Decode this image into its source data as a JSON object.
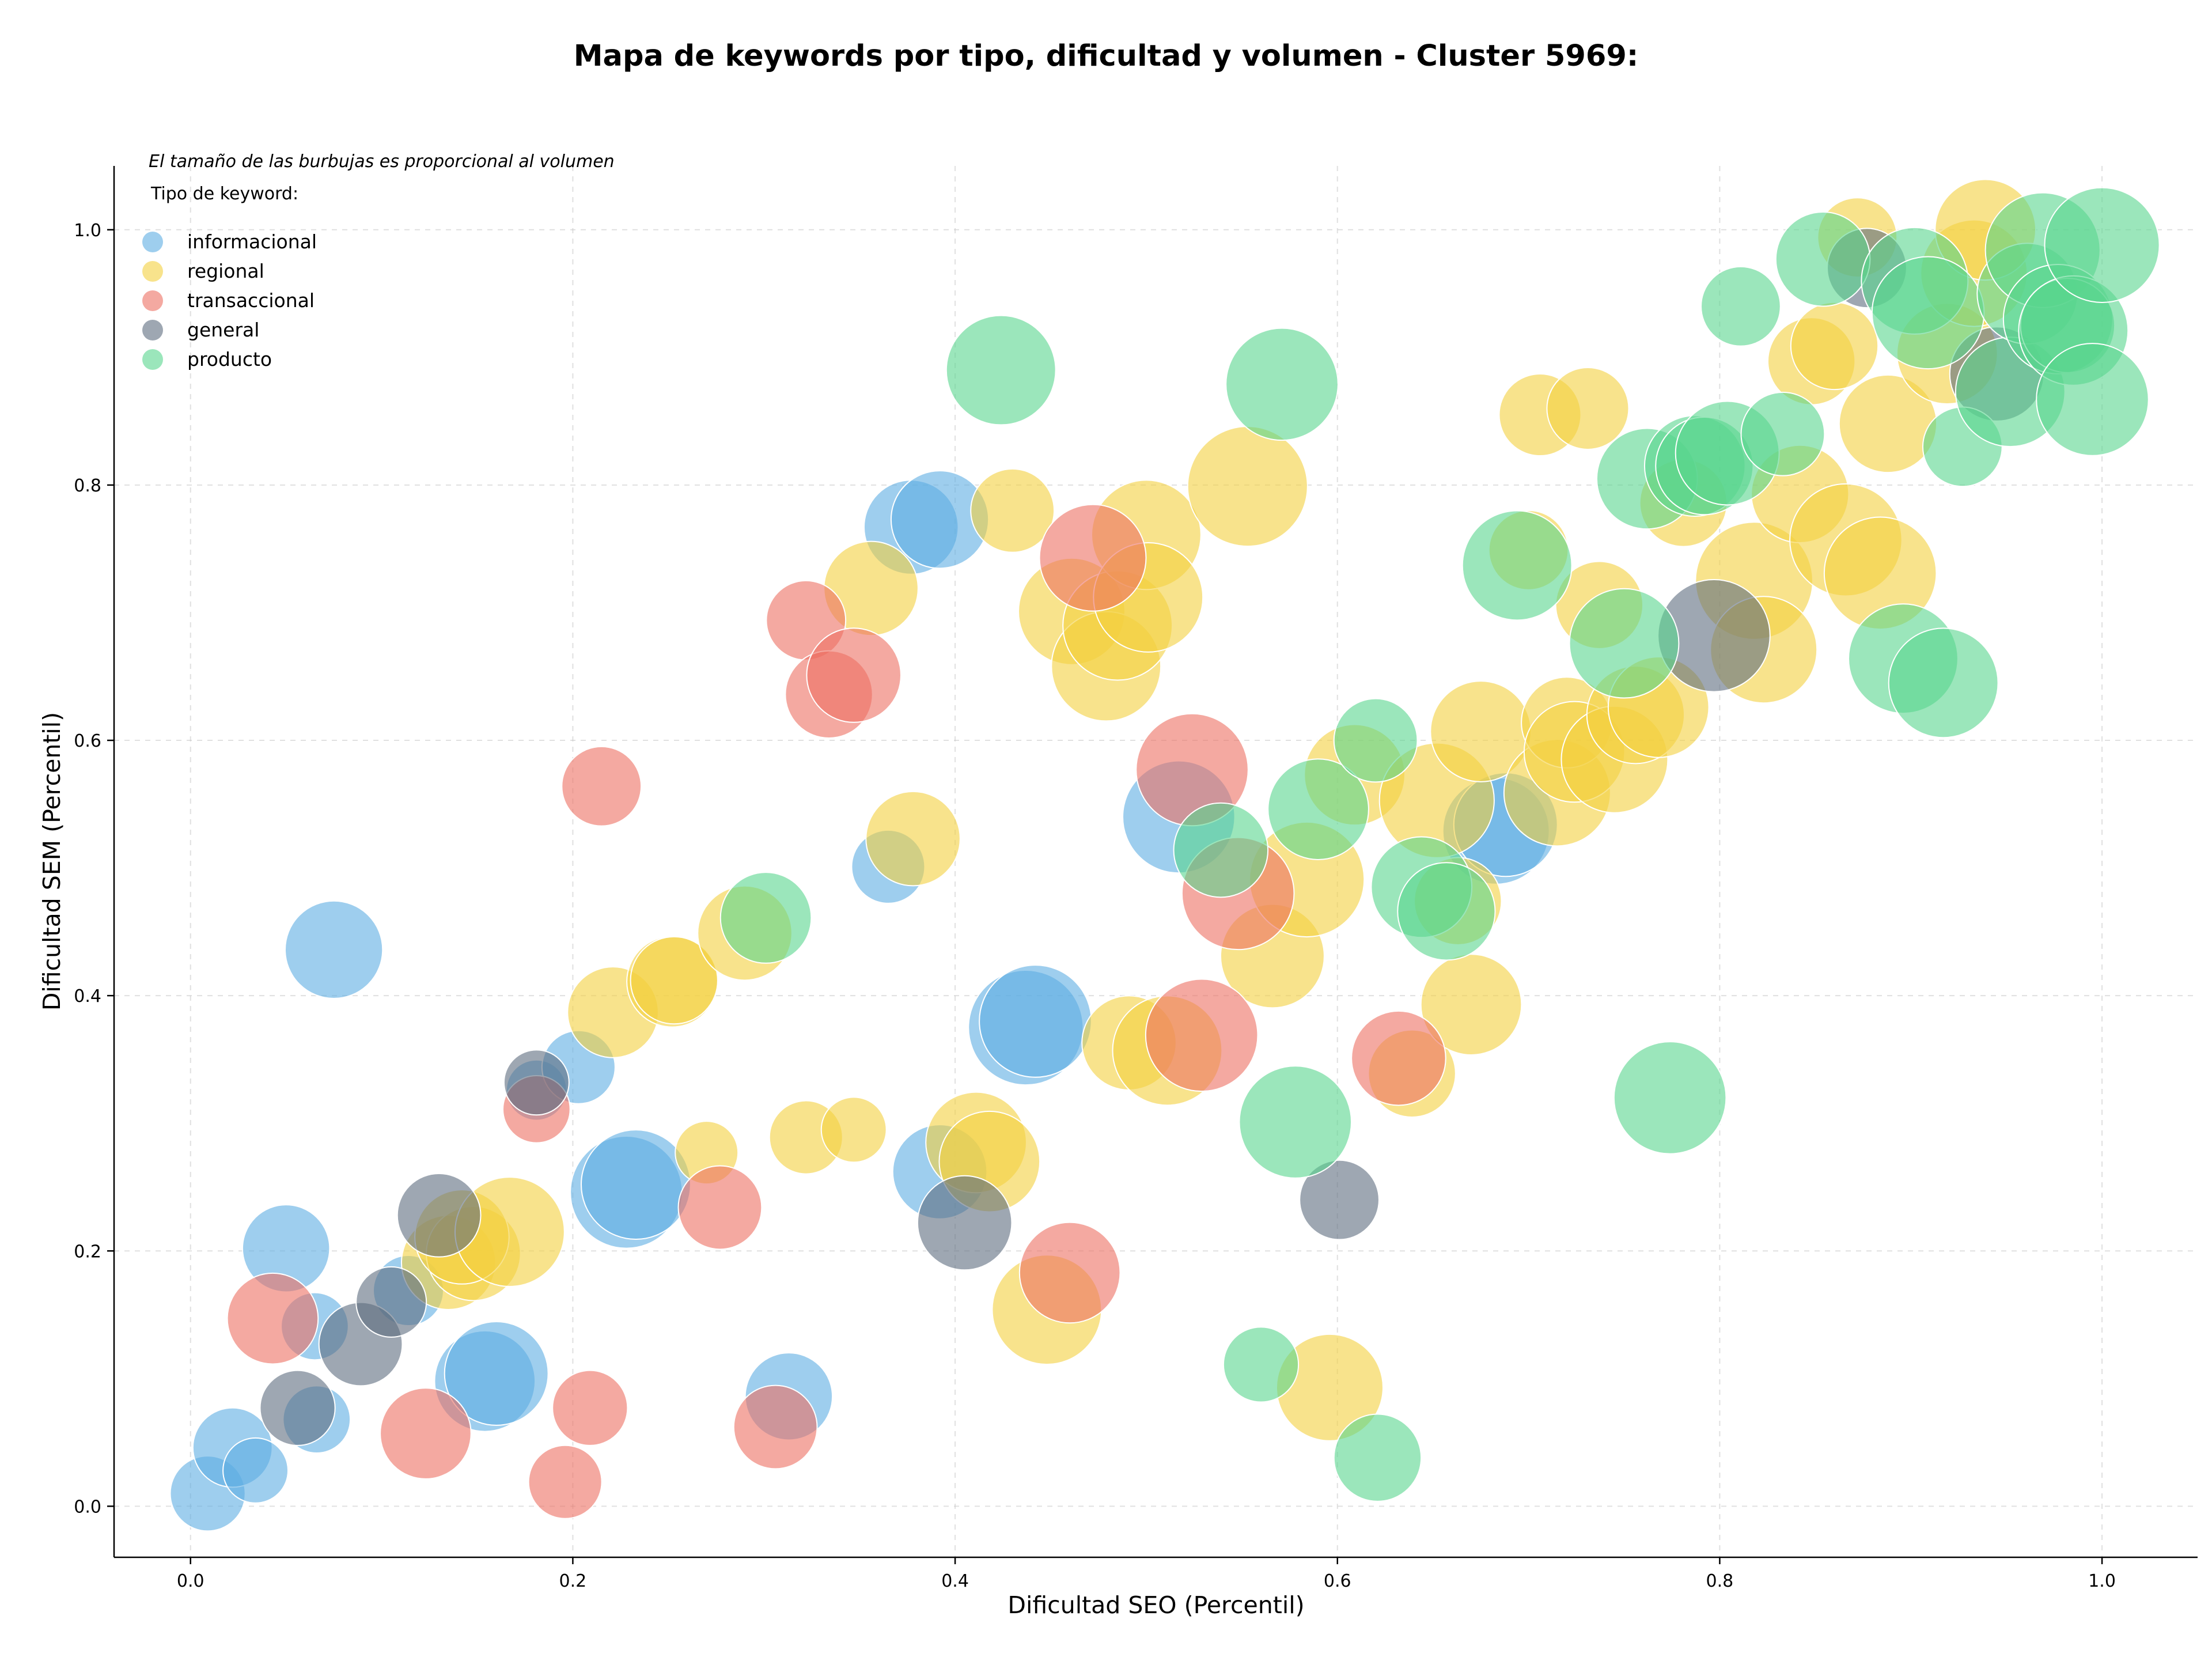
{
  "chart_data": {
    "type": "scatter",
    "title": "Mapa de keywords por tipo, dificultad y volumen - Cluster 5969:",
    "xlabel": "Dificultad SEO (Percentil)",
    "ylabel": "Dificultad SEM (Percentil)",
    "xlim": [
      -0.04,
      1.05
    ],
    "ylim": [
      -0.04,
      1.05
    ],
    "xticks": [
      "0.0",
      "0.2",
      "0.4",
      "0.6",
      "0.8",
      "1.0"
    ],
    "yticks": [
      "0.0",
      "0.2",
      "0.4",
      "0.6",
      "0.8",
      "1.0"
    ],
    "grid": true,
    "legend": {
      "placement": "top-left",
      "note": "El tamaño de las burbujas es proporcional al volumen",
      "title": "Tipo de keyword:"
    },
    "series": [
      {
        "name": "informacional",
        "color": "#5DADE2",
        "points": [
          {
            "x": 0.009,
            "y": 0.01,
            "size": 0.3
          },
          {
            "x": 0.022,
            "y": 0.046,
            "size": 0.35
          },
          {
            "x": 0.034,
            "y": 0.028,
            "size": 0.2
          },
          {
            "x": 0.05,
            "y": 0.202,
            "size": 0.45
          },
          {
            "x": 0.065,
            "y": 0.141,
            "size": 0.22
          },
          {
            "x": 0.066,
            "y": 0.068,
            "size": 0.22
          },
          {
            "x": 0.075,
            "y": 0.436,
            "size": 0.6
          },
          {
            "x": 0.114,
            "y": 0.169,
            "size": 0.25
          },
          {
            "x": 0.154,
            "y": 0.098,
            "size": 0.65
          },
          {
            "x": 0.16,
            "y": 0.104,
            "size": 0.7
          },
          {
            "x": 0.181,
            "y": 0.326,
            "size": 0.16
          },
          {
            "x": 0.203,
            "y": 0.344,
            "size": 0.28
          },
          {
            "x": 0.228,
            "y": 0.246,
            "size": 0.85
          },
          {
            "x": 0.233,
            "y": 0.252,
            "size": 0.8
          },
          {
            "x": 0.313,
            "y": 0.086,
            "size": 0.45
          },
          {
            "x": 0.365,
            "y": 0.501,
            "size": 0.28
          },
          {
            "x": 0.377,
            "y": 0.767,
            "size": 0.55
          },
          {
            "x": 0.392,
            "y": 0.773,
            "size": 0.6
          },
          {
            "x": 0.392,
            "y": 0.262,
            "size": 0.55
          },
          {
            "x": 0.437,
            "y": 0.375,
            "size": 0.9
          },
          {
            "x": 0.442,
            "y": 0.38,
            "size": 0.85
          },
          {
            "x": 0.517,
            "y": 0.54,
            "size": 0.85
          },
          {
            "x": 0.683,
            "y": 0.529,
            "size": 0.75
          },
          {
            "x": 0.688,
            "y": 0.534,
            "size": 0.7
          }
        ]
      },
      {
        "name": "regional",
        "color": "#F4D03F",
        "points": [
          {
            "x": 0.135,
            "y": 0.191,
            "size": 0.55
          },
          {
            "x": 0.148,
            "y": 0.198,
            "size": 0.55
          },
          {
            "x": 0.142,
            "y": 0.211,
            "size": 0.55
          },
          {
            "x": 0.167,
            "y": 0.215,
            "size": 0.8
          },
          {
            "x": 0.221,
            "y": 0.387,
            "size": 0.5
          },
          {
            "x": 0.252,
            "y": 0.411,
            "size": 0.5
          },
          {
            "x": 0.253,
            "y": 0.412,
            "size": 0.45
          },
          {
            "x": 0.27,
            "y": 0.277,
            "size": 0.18
          },
          {
            "x": 0.29,
            "y": 0.449,
            "size": 0.55
          },
          {
            "x": 0.322,
            "y": 0.289,
            "size": 0.28
          },
          {
            "x": 0.347,
            "y": 0.295,
            "size": 0.2
          },
          {
            "x": 0.356,
            "y": 0.719,
            "size": 0.55
          },
          {
            "x": 0.378,
            "y": 0.523,
            "size": 0.55
          },
          {
            "x": 0.411,
            "y": 0.285,
            "size": 0.65
          },
          {
            "x": 0.418,
            "y": 0.27,
            "size": 0.65
          },
          {
            "x": 0.43,
            "y": 0.78,
            "size": 0.4
          },
          {
            "x": 0.448,
            "y": 0.154,
            "size": 0.8
          },
          {
            "x": 0.461,
            "y": 0.701,
            "size": 0.75
          },
          {
            "x": 0.479,
            "y": 0.658,
            "size": 0.8
          },
          {
            "x": 0.485,
            "y": 0.69,
            "size": 0.8
          },
          {
            "x": 0.491,
            "y": 0.363,
            "size": 0.55
          },
          {
            "x": 0.5,
            "y": 0.761,
            "size": 0.8
          },
          {
            "x": 0.501,
            "y": 0.712,
            "size": 0.8
          },
          {
            "x": 0.511,
            "y": 0.357,
            "size": 0.8
          },
          {
            "x": 0.553,
            "y": 0.799,
            "size": 1.0
          },
          {
            "x": 0.566,
            "y": 0.431,
            "size": 0.7
          },
          {
            "x": 0.584,
            "y": 0.491,
            "size": 0.9
          },
          {
            "x": 0.596,
            "y": 0.093,
            "size": 0.75
          },
          {
            "x": 0.609,
            "y": 0.573,
            "size": 0.65
          },
          {
            "x": 0.639,
            "y": 0.339,
            "size": 0.45
          },
          {
            "x": 0.652,
            "y": 0.553,
            "size": 0.9
          },
          {
            "x": 0.663,
            "y": 0.474,
            "size": 0.45
          },
          {
            "x": 0.67,
            "y": 0.393,
            "size": 0.65
          },
          {
            "x": 0.675,
            "y": 0.607,
            "size": 0.65
          },
          {
            "x": 0.7,
            "y": 0.749,
            "size": 0.35
          },
          {
            "x": 0.706,
            "y": 0.855,
            "size": 0.38
          },
          {
            "x": 0.715,
            "y": 0.559,
            "size": 0.75
          },
          {
            "x": 0.72,
            "y": 0.614,
            "size": 0.5
          },
          {
            "x": 0.724,
            "y": 0.591,
            "size": 0.65
          },
          {
            "x": 0.731,
            "y": 0.86,
            "size": 0.38
          },
          {
            "x": 0.737,
            "y": 0.706,
            "size": 0.45
          },
          {
            "x": 0.745,
            "y": 0.585,
            "size": 0.75
          },
          {
            "x": 0.756,
            "y": 0.62,
            "size": 0.6
          },
          {
            "x": 0.768,
            "y": 0.626,
            "size": 0.65
          },
          {
            "x": 0.781,
            "y": 0.786,
            "size": 0.45
          },
          {
            "x": 0.818,
            "y": 0.725,
            "size": 0.95
          },
          {
            "x": 0.823,
            "y": 0.671,
            "size": 0.75
          },
          {
            "x": 0.842,
            "y": 0.793,
            "size": 0.6
          },
          {
            "x": 0.848,
            "y": 0.897,
            "size": 0.45
          },
          {
            "x": 0.86,
            "y": 0.909,
            "size": 0.45
          },
          {
            "x": 0.866,
            "y": 0.757,
            "size": 0.85
          },
          {
            "x": 0.872,
            "y": 0.994,
            "size": 0.35
          },
          {
            "x": 0.884,
            "y": 0.731,
            "size": 0.85
          },
          {
            "x": 0.888,
            "y": 0.848,
            "size": 0.6
          },
          {
            "x": 0.919,
            "y": 0.903,
            "size": 0.65
          },
          {
            "x": 0.933,
            "y": 0.966,
            "size": 0.75
          },
          {
            "x": 0.939,
            "y": 1.0,
            "size": 0.65
          }
        ]
      },
      {
        "name": "transaccional",
        "color": "#EC7063",
        "points": [
          {
            "x": 0.043,
            "y": 0.147,
            "size": 0.5
          },
          {
            "x": 0.123,
            "y": 0.057,
            "size": 0.5
          },
          {
            "x": 0.181,
            "y": 0.311,
            "size": 0.22
          },
          {
            "x": 0.196,
            "y": 0.019,
            "size": 0.28
          },
          {
            "x": 0.209,
            "y": 0.077,
            "size": 0.3
          },
          {
            "x": 0.215,
            "y": 0.564,
            "size": 0.35
          },
          {
            "x": 0.277,
            "y": 0.234,
            "size": 0.4
          },
          {
            "x": 0.306,
            "y": 0.062,
            "size": 0.4
          },
          {
            "x": 0.322,
            "y": 0.694,
            "size": 0.35
          },
          {
            "x": 0.334,
            "y": 0.636,
            "size": 0.45
          },
          {
            "x": 0.347,
            "y": 0.651,
            "size": 0.55
          },
          {
            "x": 0.46,
            "y": 0.183,
            "size": 0.65
          },
          {
            "x": 0.472,
            "y": 0.743,
            "size": 0.75
          },
          {
            "x": 0.524,
            "y": 0.577,
            "size": 0.85
          },
          {
            "x": 0.529,
            "y": 0.369,
            "size": 0.85
          },
          {
            "x": 0.548,
            "y": 0.48,
            "size": 0.85
          },
          {
            "x": 0.632,
            "y": 0.351,
            "size": 0.55
          }
        ]
      },
      {
        "name": "general",
        "color": "#5D6D7E",
        "points": [
          {
            "x": 0.056,
            "y": 0.077,
            "size": 0.3
          },
          {
            "x": 0.089,
            "y": 0.127,
            "size": 0.4
          },
          {
            "x": 0.105,
            "y": 0.16,
            "size": 0.25
          },
          {
            "x": 0.13,
            "y": 0.228,
            "size": 0.4
          },
          {
            "x": 0.181,
            "y": 0.332,
            "size": 0.2
          },
          {
            "x": 0.405,
            "y": 0.222,
            "size": 0.55
          },
          {
            "x": 0.601,
            "y": 0.24,
            "size": 0.35
          },
          {
            "x": 0.797,
            "y": 0.682,
            "size": 0.85
          },
          {
            "x": 0.877,
            "y": 0.97,
            "size": 0.35
          },
          {
            "x": 0.945,
            "y": 0.887,
            "size": 0.55
          }
        ]
      },
      {
        "name": "producto",
        "color": "#58D68D",
        "points": [
          {
            "x": 0.301,
            "y": 0.461,
            "size": 0.5
          },
          {
            "x": 0.424,
            "y": 0.89,
            "size": 0.8
          },
          {
            "x": 0.539,
            "y": 0.514,
            "size": 0.55
          },
          {
            "x": 0.56,
            "y": 0.111,
            "size": 0.3
          },
          {
            "x": 0.571,
            "y": 0.879,
            "size": 0.85
          },
          {
            "x": 0.578,
            "y": 0.301,
            "size": 0.85
          },
          {
            "x": 0.59,
            "y": 0.546,
            "size": 0.65
          },
          {
            "x": 0.62,
            "y": 0.6,
            "size": 0.4
          },
          {
            "x": 0.621,
            "y": 0.038,
            "size": 0.45
          },
          {
            "x": 0.644,
            "y": 0.485,
            "size": 0.65
          },
          {
            "x": 0.657,
            "y": 0.466,
            "size": 0.6
          },
          {
            "x": 0.694,
            "y": 0.737,
            "size": 0.8
          },
          {
            "x": 0.75,
            "y": 0.676,
            "size": 0.8
          },
          {
            "x": 0.762,
            "y": 0.805,
            "size": 0.65
          },
          {
            "x": 0.774,
            "y": 0.32,
            "size": 0.85
          },
          {
            "x": 0.787,
            "y": 0.815,
            "size": 0.65
          },
          {
            "x": 0.792,
            "y": 0.815,
            "size": 0.6
          },
          {
            "x": 0.804,
            "y": 0.825,
            "size": 0.7
          },
          {
            "x": 0.811,
            "y": 0.94,
            "size": 0.35
          },
          {
            "x": 0.833,
            "y": 0.84,
            "size": 0.4
          },
          {
            "x": 0.854,
            "y": 0.977,
            "size": 0.55
          },
          {
            "x": 0.896,
            "y": 0.664,
            "size": 0.8
          },
          {
            "x": 0.902,
            "y": 0.96,
            "size": 0.75
          },
          {
            "x": 0.909,
            "y": 0.935,
            "size": 0.85
          },
          {
            "x": 0.917,
            "y": 0.645,
            "size": 0.8
          },
          {
            "x": 0.927,
            "y": 0.83,
            "size": 0.35
          },
          {
            "x": 0.952,
            "y": 0.873,
            "size": 0.8
          },
          {
            "x": 0.961,
            "y": 0.95,
            "size": 0.65
          },
          {
            "x": 0.969,
            "y": 0.984,
            "size": 0.9
          },
          {
            "x": 0.977,
            "y": 0.93,
            "size": 0.8
          },
          {
            "x": 0.982,
            "y": 0.925,
            "size": 0.55
          },
          {
            "x": 0.985,
            "y": 0.921,
            "size": 0.8
          },
          {
            "x": 0.995,
            "y": 0.867,
            "size": 0.85
          },
          {
            "x": 1.0,
            "y": 0.988,
            "size": 0.9
          }
        ]
      }
    ]
  }
}
